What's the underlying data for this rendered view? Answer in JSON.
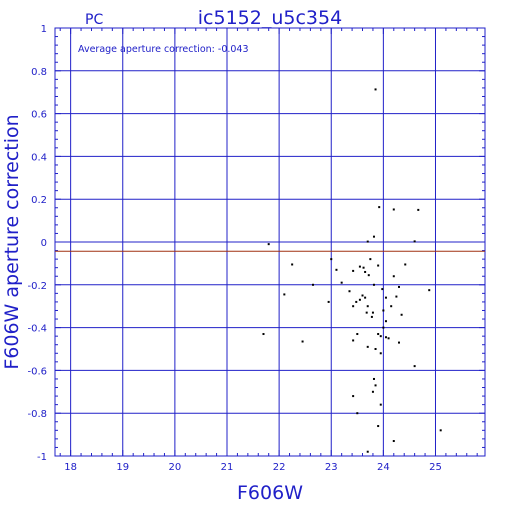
{
  "chart_data": {
    "type": "scatter",
    "header_left": "PC",
    "title": "ic5152_u5c354",
    "annotation": "Average aperture correction: -0.043",
    "xlabel": "F606W",
    "ylabel": "F606W aperture correction",
    "xlim": [
      17.7,
      25.95
    ],
    "ylim": [
      -1,
      1
    ],
    "x_ticks": [
      "18",
      "19",
      "20",
      "21",
      "22",
      "23",
      "24",
      "25"
    ],
    "y_ticks": [
      "1",
      "0.8",
      "0.6",
      "0.4",
      "0.2",
      "0",
      "-0.2",
      "-0.4",
      "-0.6",
      "-0.8",
      "-1"
    ],
    "grid": true,
    "reference_line": -0.043,
    "colors": {
      "axis": "#2020c8",
      "grid": "#2020c8",
      "points": "#000000",
      "reference_line": "#a03010"
    },
    "points": [
      [
        23.85,
        0.713
      ],
      [
        23.92,
        0.163
      ],
      [
        24.2,
        0.152
      ],
      [
        24.67,
        0.15
      ],
      [
        23.82,
        0.025
      ],
      [
        23.7,
        0.002
      ],
      [
        24.6,
        0.003
      ],
      [
        21.8,
        -0.01
      ],
      [
        23.0,
        -0.08
      ],
      [
        23.75,
        -0.08
      ],
      [
        22.25,
        -0.105
      ],
      [
        23.1,
        -0.13
      ],
      [
        23.55,
        -0.115
      ],
      [
        23.62,
        -0.12
      ],
      [
        23.9,
        -0.11
      ],
      [
        24.42,
        -0.105
      ],
      [
        23.42,
        -0.135
      ],
      [
        23.65,
        -0.14
      ],
      [
        23.72,
        -0.155
      ],
      [
        24.2,
        -0.16
      ],
      [
        22.65,
        -0.2
      ],
      [
        23.2,
        -0.19
      ],
      [
        23.82,
        -0.2
      ],
      [
        24.3,
        -0.21
      ],
      [
        23.98,
        -0.22
      ],
      [
        24.88,
        -0.225
      ],
      [
        22.1,
        -0.245
      ],
      [
        23.35,
        -0.23
      ],
      [
        23.6,
        -0.25
      ],
      [
        23.65,
        -0.26
      ],
      [
        24.05,
        -0.26
      ],
      [
        24.25,
        -0.255
      ],
      [
        22.95,
        -0.28
      ],
      [
        23.48,
        -0.28
      ],
      [
        23.55,
        -0.27
      ],
      [
        23.7,
        -0.3
      ],
      [
        24.15,
        -0.3
      ],
      [
        23.42,
        -0.3
      ],
      [
        23.68,
        -0.33
      ],
      [
        23.8,
        -0.33
      ],
      [
        24.0,
        -0.32
      ],
      [
        23.78,
        -0.35
      ],
      [
        24.35,
        -0.34
      ],
      [
        24.05,
        -0.37
      ],
      [
        24.0,
        -0.4
      ],
      [
        23.5,
        -0.43
      ],
      [
        23.9,
        -0.43
      ],
      [
        21.7,
        -0.43
      ],
      [
        23.95,
        -0.44
      ],
      [
        24.05,
        -0.445
      ],
      [
        24.1,
        -0.45
      ],
      [
        23.42,
        -0.46
      ],
      [
        22.45,
        -0.465
      ],
      [
        24.3,
        -0.47
      ],
      [
        23.7,
        -0.49
      ],
      [
        23.85,
        -0.5
      ],
      [
        23.95,
        -0.52
      ],
      [
        24.6,
        -0.58
      ],
      [
        23.82,
        -0.64
      ],
      [
        23.85,
        -0.67
      ],
      [
        23.8,
        -0.7
      ],
      [
        23.42,
        -0.72
      ],
      [
        23.95,
        -0.76
      ],
      [
        23.5,
        -0.8
      ],
      [
        23.9,
        -0.86
      ],
      [
        24.2,
        -0.93
      ],
      [
        23.7,
        -0.98
      ],
      [
        25.1,
        -0.88
      ]
    ]
  }
}
